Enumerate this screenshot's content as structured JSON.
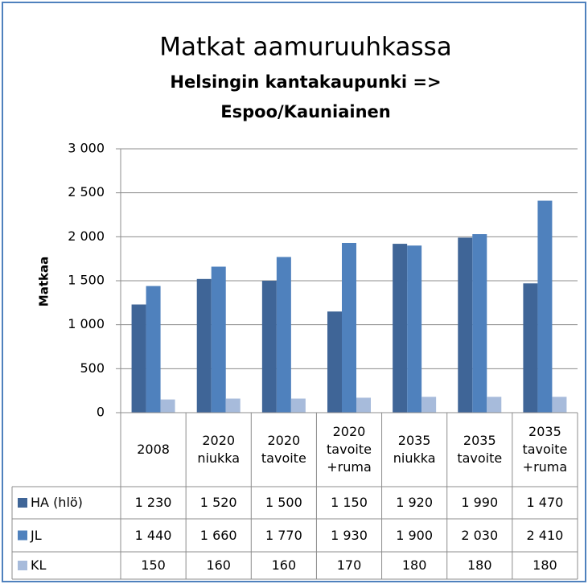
{
  "chart_data": {
    "type": "bar",
    "title": "Matkat aamuruuhkassa",
    "subtitle": [
      "Helsingin kantakaupunki =>",
      "Espoo/Kauniainen"
    ],
    "y_label": "Matkaa",
    "categories": [
      "2008",
      "2020 niukka",
      "2020 tavoite",
      "2020 tavoite +ruma",
      "2035 niukka",
      "2035 tavoite",
      "2035 tavoite +ruma"
    ],
    "series": [
      {
        "name": "HA (hlö)",
        "color": "#3f6597",
        "values": [
          1230,
          1520,
          1500,
          1150,
          1920,
          1990,
          1470
        ],
        "value_labels": [
          "1 230",
          "1 520",
          "1 500",
          "1 150",
          "1 920",
          "1 990",
          "1 470"
        ]
      },
      {
        "name": "JL",
        "color": "#4f81bd",
        "values": [
          1440,
          1660,
          1770,
          1930,
          1900,
          2030,
          2410
        ],
        "value_labels": [
          "1 440",
          "1 660",
          "1 770",
          "1 930",
          "1 900",
          "2 030",
          "2 410"
        ]
      },
      {
        "name": "KL",
        "color": "#a7bbdb",
        "values": [
          150,
          160,
          160,
          170,
          180,
          180,
          180
        ],
        "value_labels": [
          "150",
          "160",
          "160",
          "170",
          "180",
          "180",
          "180"
        ]
      }
    ],
    "ylim": [
      0,
      3000
    ],
    "yticks": [
      0,
      {
        "value": 500,
        "label": "500"
      },
      {
        "value": 1000,
        "label": "1 000"
      },
      {
        "value": 1500,
        "label": "1 500"
      },
      {
        "value": 2000,
        "label": "2 000"
      },
      {
        "value": 2500,
        "label": "2 500"
      },
      {
        "value": 3000,
        "label": "3 000"
      }
    ],
    "grid": true
  }
}
